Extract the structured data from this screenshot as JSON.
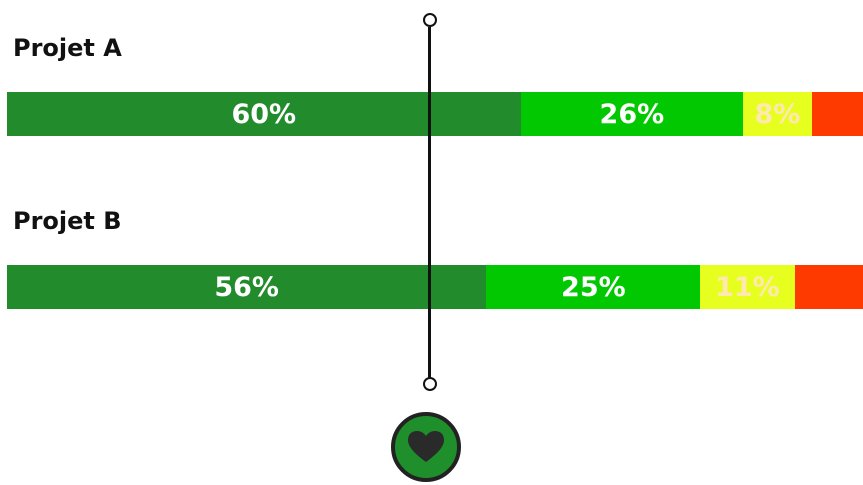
{
  "chart_data": {
    "type": "bar",
    "stacked": true,
    "orientation": "horizontal",
    "categories": [
      "Projet A",
      "Projet B"
    ],
    "series": [
      {
        "values": [
          60,
          56
        ],
        "color": "#228b2c"
      },
      {
        "values": [
          26,
          25
        ],
        "color": "#02c802"
      },
      {
        "values": [
          8,
          11
        ],
        "color": "#e6ff1f"
      },
      {
        "values": [
          6,
          8
        ],
        "color": "#ff3a00"
      }
    ],
    "data_labels": [
      [
        "60%",
        "26%",
        "8%",
        ""
      ],
      [
        "56%",
        "25%",
        "11%",
        ""
      ]
    ],
    "ylim": [
      0,
      100
    ],
    "grid": false
  },
  "controls": {
    "slider_handle_icon": "circle-handle-icon",
    "heart_button_icon": "heart-icon",
    "heart_button_color": "#1e8f2b"
  }
}
